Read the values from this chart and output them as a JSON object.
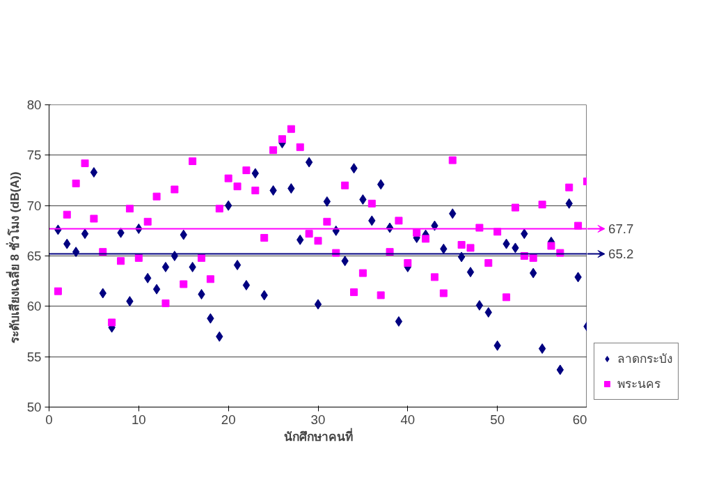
{
  "chart_data": {
    "type": "scatter",
    "xlabel": "นักศึกษาคนที่",
    "ylabel": "ระดับเสียงเฉลี่ย  8 ชั่วโมง (dB(A))",
    "x": [
      1,
      2,
      3,
      4,
      5,
      6,
      7,
      8,
      9,
      10,
      11,
      12,
      13,
      14,
      15,
      16,
      17,
      18,
      19,
      20,
      21,
      22,
      23,
      24,
      25,
      26,
      27,
      28,
      29,
      30,
      31,
      32,
      33,
      34,
      35,
      36,
      37,
      38,
      39,
      40,
      41,
      42,
      43,
      44,
      45,
      46,
      47,
      48,
      49,
      50,
      51,
      52,
      53,
      54,
      55,
      56,
      57,
      58,
      59,
      60
    ],
    "series": [
      {
        "name": "ลาดกระบัง",
        "color": "#000080",
        "marker": "diamond",
        "values": [
          67.6,
          66.2,
          65.4,
          67.2,
          73.3,
          61.3,
          57.9,
          67.3,
          60.5,
          67.7,
          62.8,
          61.7,
          63.9,
          65.0,
          67.1,
          63.9,
          61.2,
          58.8,
          57.0,
          70.0,
          64.1,
          62.1,
          73.2,
          61.1,
          71.5,
          76.2,
          71.7,
          66.6,
          74.3,
          60.2,
          70.4,
          67.5,
          64.5,
          73.7,
          70.6,
          68.5,
          72.1,
          67.8,
          58.5,
          63.9,
          66.8,
          67.1,
          68.0,
          65.7,
          69.2,
          64.9,
          63.4,
          60.1,
          59.4,
          56.1,
          66.2,
          65.8,
          67.2,
          63.3,
          55.8,
          66.4,
          53.7,
          70.2,
          62.9,
          58.0
        ]
      },
      {
        "name": "พระนคร",
        "color": "#ff00ff",
        "marker": "square",
        "values": [
          61.5,
          69.1,
          72.2,
          74.2,
          68.7,
          65.4,
          58.4,
          64.5,
          69.7,
          64.8,
          68.4,
          70.9,
          60.3,
          71.6,
          62.2,
          74.4,
          64.8,
          62.7,
          69.7,
          72.7,
          71.9,
          73.5,
          71.5,
          66.8,
          75.5,
          76.6,
          77.6,
          75.8,
          67.2,
          66.5,
          68.4,
          65.3,
          72.0,
          61.4,
          63.3,
          70.2,
          61.1,
          65.4,
          68.5,
          64.3,
          67.3,
          66.7,
          62.9,
          61.3,
          74.5,
          66.1,
          65.8,
          67.8,
          64.3,
          67.4,
          60.9,
          69.8,
          65.0,
          64.8,
          70.1,
          66.0,
          65.3,
          71.8,
          68.0,
          72.4
        ]
      }
    ],
    "xlim": [
      0,
      60
    ],
    "xticks": [
      0,
      10,
      20,
      30,
      40,
      50,
      60
    ],
    "ylim": [
      50,
      80
    ],
    "yticks": [
      50,
      55,
      60,
      65,
      70,
      75,
      80
    ],
    "grid": "y",
    "legend": "bottom right",
    "ref_lines": [
      {
        "axis": "y",
        "value": 67.7,
        "label": "67.7",
        "color": "#ff00ff"
      },
      {
        "axis": "y",
        "value": 65.2,
        "label": "65.2",
        "color": "#000080"
      }
    ]
  }
}
